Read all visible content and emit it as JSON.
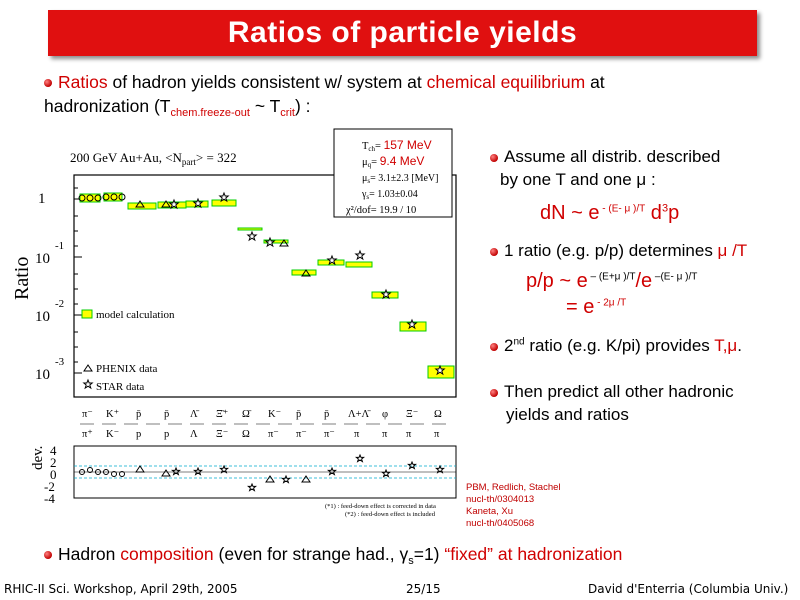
{
  "title": "Ratios of particle yields",
  "intro": {
    "w1": "Ratios",
    "w2": " of hadron yields consistent w/ system at ",
    "w3": "chemical equilibrium",
    "w4": " at",
    "w5": "hadronization (T",
    "w6": "chem.freeze-out",
    "w7": " ~ T",
    "w8": "crit",
    "w9": ") :"
  },
  "plot": {
    "header": "200 GeV Au+Au, <N",
    "header_sub": "part",
    "header_end": "> = 322",
    "y_axis_label": "Ratio",
    "ticks": {
      "one": "1",
      "ten": "10",
      "m1": "-1",
      "m2": "-2",
      "m3": "-3"
    },
    "legend": {
      "model": "model calculation",
      "phenix": "PHENIX data",
      "star": "STAR data"
    },
    "dev_label": "dev.",
    "dev_ticks": [
      "4",
      "2",
      "0",
      "-2",
      "-4"
    ],
    "footnote1": "(*1) : feed-down effect is corrected in data",
    "footnote2": "(*2) : feed-down effect is included",
    "params": {
      "tch_label": "T",
      "tch_sub": "ch",
      "tch_value": "157 MeV",
      "muq_label": "μ",
      "muq_sub": "q",
      "muq_value": "9.4 MeV",
      "mus_label": "μ",
      "mus_sub": "s",
      "mus_value": "3.1±2.3",
      "mus_unit": "[MeV]",
      "gs_label": "γ",
      "gs_sub": "s",
      "gs_value": "1.03±0.04",
      "chi2": "χ²/dof= 19.9 / 10"
    }
  },
  "colors": {
    "accent_red": "#d00000",
    "band_yellow": "#ffff00",
    "band_green": "#00cc00"
  },
  "right": {
    "p1a": "Assume all distrib. described",
    "p1b": "by one T and one μ :",
    "f1": "dN ~ e",
    "f1_sup": " - (E- μ )/T",
    "f1_end": " d",
    "f1_exp": "3",
    "f1_p": "p",
    "p2": "1 ratio (e.g. p/p) determines ",
    "p2_red": "μ /T",
    "f2": "p/p ~ e",
    "f2_sup1": " – (E+μ )/T",
    "f2_mid": "/e",
    "f2_sup2": " –(E- μ )/T",
    "f3": "= e",
    "f3_sup": " - 2μ /T",
    "p3a": "2",
    "p3_sup": "nd",
    "p3b": " ratio (e.g. K/pi) provides ",
    "p3_red": "T,μ",
    "p3_end": ".",
    "p4a": "Then predict all other hadronic",
    "p4b": "yields and ratios"
  },
  "refs": [
    "PBM, Redlich, Stachel",
    "nucl-th/0304013",
    "Kaneta, Xu",
    "nucl-th/0405068"
  ],
  "bottom": {
    "b1": "Hadron ",
    "b2": "composition",
    "b3": " (even for strange had., γ",
    "b3_sub": "s",
    "b4": "=1) ",
    "b5": "“fixed” at hadronization"
  },
  "footer": {
    "left": "RHIC-II Sci. Workshop, April 29th, 2005",
    "center": "25/15",
    "right": "David d'Enterria (Columbia Univ.)"
  }
}
